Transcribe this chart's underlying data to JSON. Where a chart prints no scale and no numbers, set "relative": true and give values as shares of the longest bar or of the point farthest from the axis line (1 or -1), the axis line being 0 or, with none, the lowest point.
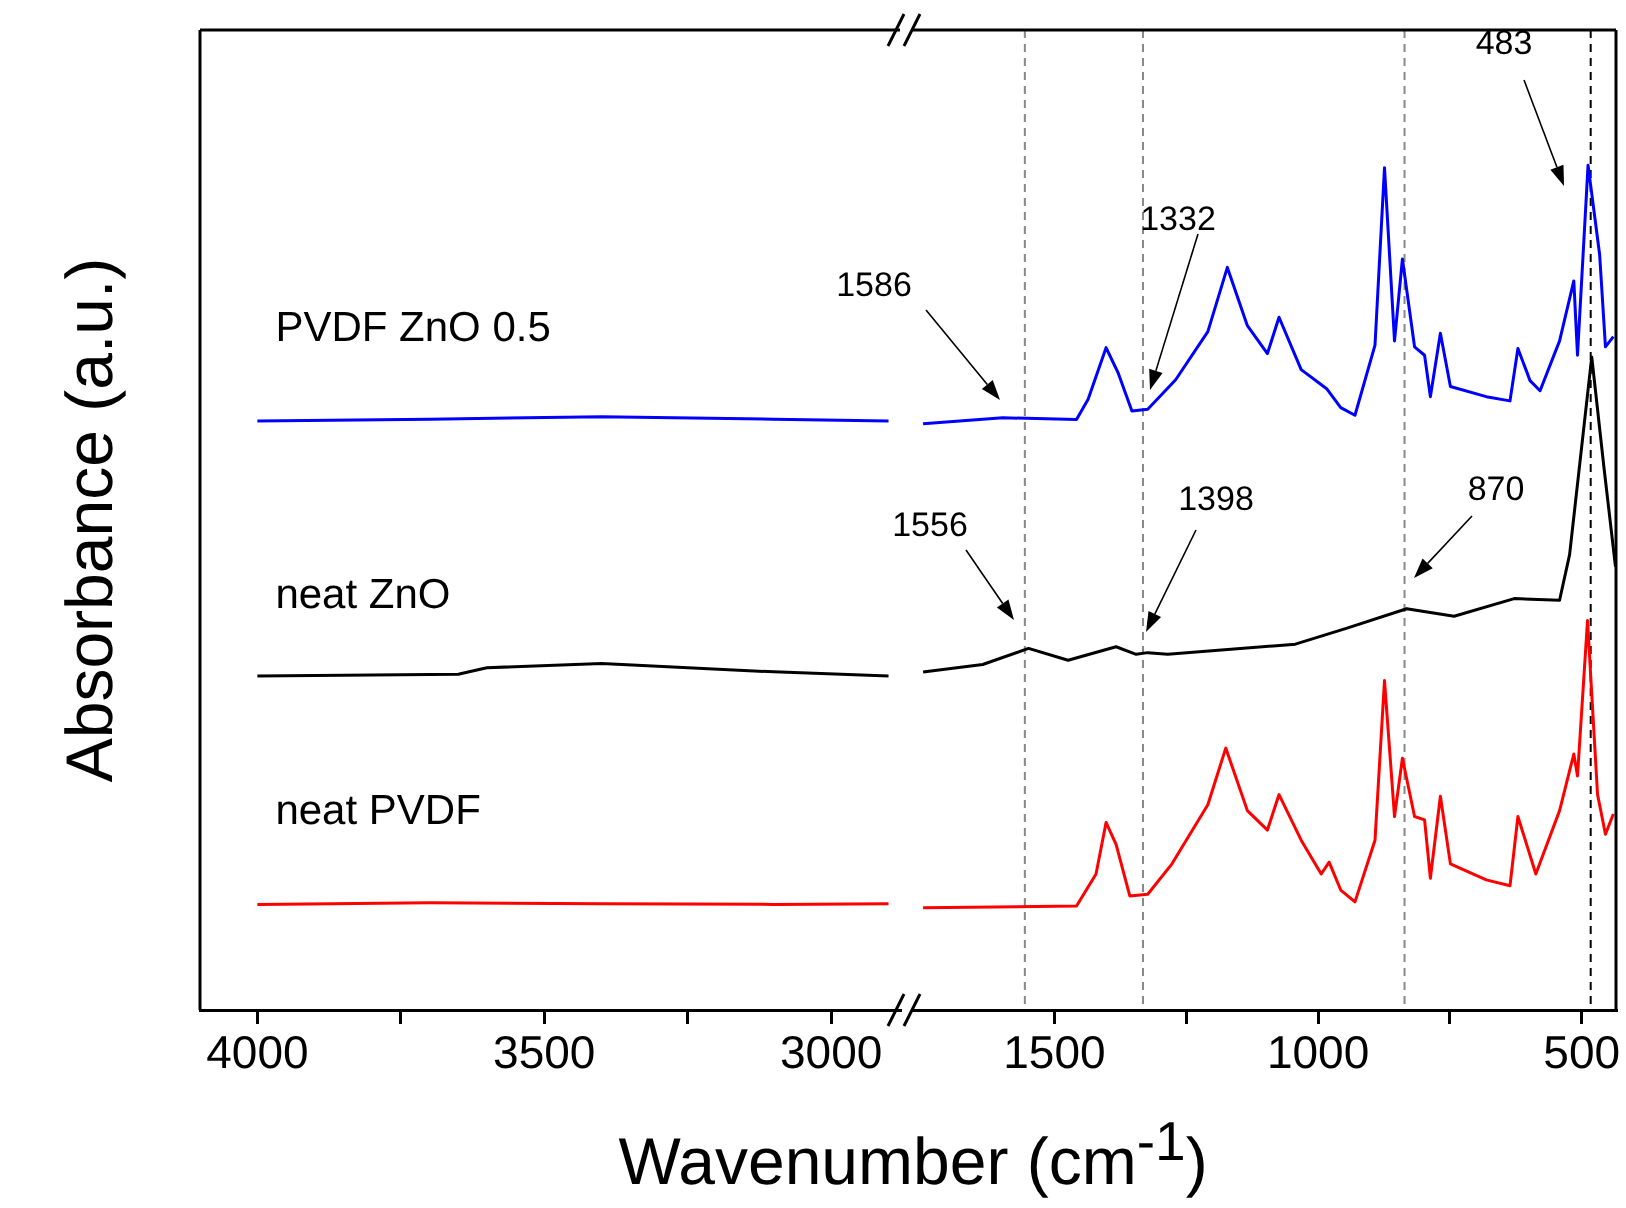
{
  "chart_data": [
    {
      "type": "line",
      "xlabel": "Wavenumber (cm$^{-1}$)",
      "ylabel": "Absorbance (a.u.)",
      "relative": true,
      "xlim": [
        4100,
        2880
      ],
      "xticks": [
        4000,
        {
          "value": 3750,
          "label": null
        },
        3500,
        {
          "value": 3250,
          "label": null
        },
        3000
      ],
      "series": [
        {
          "name": "PVDF ZnO 0.5",
          "color": "#0000ff",
          "x": [
            4000,
            3700,
            3400,
            3100,
            2900
          ],
          "values": [
            0.993,
            0.996,
            1,
            0.996,
            0.993
          ]
        },
        {
          "name": "neat ZnO",
          "color": "#000000",
          "x": [
            4000,
            3650,
            3600,
            3400,
            3100,
            2900
          ],
          "values": [
            0.563,
            0.566,
            0.577,
            0.584,
            0.57,
            0.563
          ]
        },
        {
          "name": "neat PVDF",
          "color": "#ff0000",
          "x": [
            4000,
            3700,
            3400,
            3100,
            2900
          ],
          "values": [
            0.178,
            0.181,
            0.179,
            0.178,
            0.179
          ]
        }
      ]
    },
    {
      "type": "line",
      "relative": true,
      "xlim": [
        1770,
        435
      ],
      "xticks": [
        1500,
        {
          "value": 1250,
          "label": null
        },
        1000,
        {
          "value": 750,
          "label": null
        },
        500
      ],
      "series": [
        {
          "color": "#0000ff",
          "x": [
            1749,
            1598,
            1458,
            1436,
            1402,
            1379,
            1353,
            1323,
            1270,
            1209,
            1172,
            1134,
            1096,
            1074,
            1032,
            983,
            957,
            930,
            892,
            874,
            855,
            840,
            817,
            798,
            787,
            768,
            749,
            681,
            636,
            621,
            598,
            579,
            542,
            515,
            508,
            488,
            466,
            455,
            440
          ],
          "values": [
            0.694,
            0.701,
            0.699,
            0.723,
            0.784,
            0.754,
            0.709,
            0.711,
            0.746,
            0.803,
            0.879,
            0.81,
            0.777,
            0.82,
            0.758,
            0.735,
            0.713,
            0.704,
            0.787,
            0.997,
            0.792,
            0.889,
            0.785,
            0.775,
            0.726,
            0.801,
            0.738,
            0.726,
            0.721,
            0.783,
            0.745,
            0.733,
            0.792,
            0.863,
            0.775,
            1,
            0.894,
            0.785,
            0.797
          ]
        },
        {
          "color": "#000000",
          "x": [
            1749,
            1636,
            1549,
            1474,
            1383,
            1345,
            1323,
            1285,
            1043,
            945,
            832,
            742,
            628,
            542,
            523,
            481,
            458,
            436
          ],
          "values": [
            0.4,
            0.409,
            0.428,
            0.414,
            0.43,
            0.421,
            0.423,
            0.421,
            0.433,
            0.452,
            0.475,
            0.466,
            0.487,
            0.485,
            0.539,
            0.773,
            0.643,
            0.525
          ]
        },
        {
          "color": "#ff0000",
          "x": [
            1749,
            1458,
            1421,
            1402,
            1383,
            1357,
            1323,
            1277,
            1209,
            1175,
            1134,
            1096,
            1074,
            1032,
            994,
            979,
            957,
            930,
            892,
            874,
            855,
            840,
            817,
            798,
            787,
            768,
            749,
            681,
            636,
            621,
            587,
            542,
            515,
            508,
            489,
            470,
            455,
            440
          ],
          "values": [
            0.121,
            0.123,
            0.161,
            0.222,
            0.196,
            0.135,
            0.137,
            0.173,
            0.243,
            0.31,
            0.236,
            0.213,
            0.255,
            0.201,
            0.161,
            0.175,
            0.142,
            0.128,
            0.201,
            0.39,
            0.229,
            0.298,
            0.229,
            0.225,
            0.156,
            0.253,
            0.173,
            0.154,
            0.147,
            0.229,
            0.161,
            0.236,
            0.303,
            0.277,
            0.461,
            0.255,
            0.208,
            0.232
          ]
        }
      ],
      "ref_lines": [
        {
          "axis": "x",
          "value": 1556,
          "color": "#888888",
          "line_style": "dashed"
        },
        {
          "axis": "x",
          "value": 1332,
          "color": "#888888",
          "line_style": "dashed"
        },
        {
          "axis": "x",
          "value": 836,
          "color": "#888888",
          "line_style": "dashed"
        },
        {
          "axis": "x",
          "value": 483,
          "color": "#000000",
          "line_style": "dashed"
        }
      ],
      "annotations": [
        "1586",
        "1332",
        "483",
        "1556",
        "1398",
        "870"
      ]
    }
  ]
}
